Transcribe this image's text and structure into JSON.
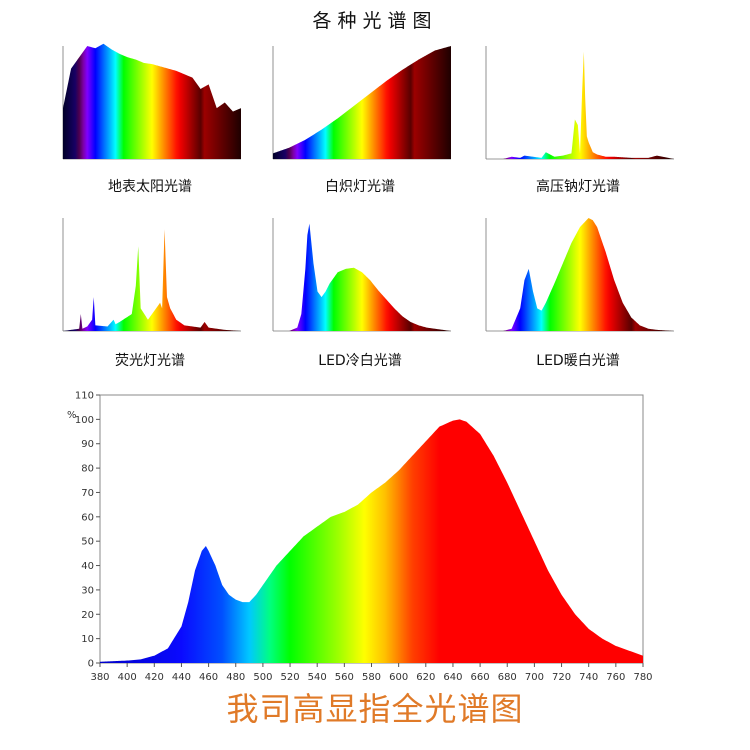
{
  "page": {
    "title": "各种光谱图",
    "footer": "我司高显指全光谱图"
  },
  "chart_data": [
    {
      "type": "area",
      "caption": "地表太阳光谱",
      "x": [
        360,
        380,
        400,
        420,
        440,
        460,
        480,
        500,
        520,
        540,
        560,
        580,
        600,
        620,
        640,
        660,
        680,
        700,
        720,
        740,
        760,
        780,
        800
      ],
      "y": [
        0.45,
        0.8,
        0.9,
        1.0,
        0.98,
        1.02,
        0.97,
        0.93,
        0.9,
        0.88,
        0.85,
        0.84,
        0.82,
        0.8,
        0.78,
        0.75,
        0.72,
        0.62,
        0.66,
        0.45,
        0.5,
        0.42,
        0.45
      ],
      "ylim": [
        0,
        1
      ]
    },
    {
      "type": "area",
      "caption": "白炽灯光谱",
      "x": [
        360,
        400,
        440,
        480,
        520,
        560,
        600,
        640,
        680,
        720,
        760,
        800
      ],
      "y": [
        0.05,
        0.1,
        0.17,
        0.26,
        0.36,
        0.47,
        0.58,
        0.69,
        0.79,
        0.88,
        0.96,
        1.0
      ],
      "ylim": [
        0,
        1
      ]
    },
    {
      "type": "area",
      "caption": "高压钠灯光谱",
      "x": [
        360,
        400,
        420,
        440,
        450,
        470,
        490,
        500,
        520,
        540,
        560,
        568,
        575,
        580,
        585,
        589,
        592,
        596,
        600,
        610,
        620,
        640,
        660,
        700,
        740,
        760,
        800
      ],
      "y": [
        0,
        0,
        0.02,
        0.01,
        0.03,
        0.02,
        0.01,
        0.06,
        0.02,
        0.03,
        0.05,
        0.35,
        0.3,
        0.05,
        0.6,
        0.95,
        0.55,
        0.2,
        0.15,
        0.06,
        0.04,
        0.02,
        0.02,
        0.01,
        0.01,
        0.03,
        0
      ],
      "ylim": [
        0,
        1
      ]
    },
    {
      "type": "area",
      "caption": "荧光灯光谱",
      "x": [
        360,
        400,
        404,
        408,
        420,
        432,
        436,
        440,
        470,
        485,
        490,
        500,
        530,
        540,
        546,
        552,
        570,
        580,
        590,
        600,
        605,
        611,
        617,
        625,
        640,
        660,
        700,
        710,
        720,
        760,
        800
      ],
      "y": [
        0,
        0.02,
        0.15,
        0.02,
        0.04,
        0.1,
        0.3,
        0.05,
        0.04,
        0.1,
        0.06,
        0.08,
        0.15,
        0.4,
        0.75,
        0.2,
        0.1,
        0.15,
        0.2,
        0.25,
        0.2,
        0.9,
        0.3,
        0.2,
        0.1,
        0.05,
        0.03,
        0.08,
        0.03,
        0.01,
        0
      ],
      "ylim": [
        0,
        1
      ]
    },
    {
      "type": "area",
      "caption": "LED冷白光谱",
      "x": [
        360,
        400,
        420,
        430,
        440,
        445,
        450,
        460,
        470,
        480,
        490,
        500,
        520,
        540,
        560,
        580,
        600,
        620,
        640,
        660,
        680,
        700,
        720,
        740,
        760,
        800
      ],
      "y": [
        0,
        0,
        0.03,
        0.15,
        0.55,
        0.85,
        0.95,
        0.6,
        0.35,
        0.3,
        0.35,
        0.42,
        0.52,
        0.55,
        0.56,
        0.52,
        0.45,
        0.36,
        0.28,
        0.2,
        0.13,
        0.08,
        0.05,
        0.03,
        0.02,
        0
      ],
      "ylim": [
        0,
        1
      ]
    },
    {
      "type": "area",
      "caption": "LED暖白光谱",
      "x": [
        360,
        400,
        420,
        440,
        450,
        460,
        470,
        480,
        490,
        500,
        520,
        540,
        560,
        580,
        600,
        610,
        620,
        640,
        660,
        680,
        700,
        720,
        740,
        760,
        800
      ],
      "y": [
        0,
        0,
        0.02,
        0.2,
        0.45,
        0.55,
        0.35,
        0.2,
        0.18,
        0.25,
        0.42,
        0.6,
        0.78,
        0.92,
        1.0,
        0.98,
        0.92,
        0.7,
        0.45,
        0.25,
        0.12,
        0.05,
        0.02,
        0.01,
        0
      ],
      "ylim": [
        0,
        1
      ]
    },
    {
      "type": "area",
      "title": "",
      "ylabel": "%",
      "xlim": [
        380,
        780
      ],
      "ylim": [
        0,
        110
      ],
      "x_ticks": [
        380,
        400,
        420,
        440,
        460,
        480,
        500,
        520,
        540,
        560,
        580,
        600,
        620,
        640,
        660,
        680,
        700,
        720,
        740,
        760,
        780
      ],
      "y_ticks": [
        0,
        10,
        20,
        30,
        40,
        50,
        60,
        70,
        80,
        90,
        100,
        110
      ],
      "x": [
        380,
        400,
        410,
        420,
        430,
        440,
        445,
        450,
        455,
        458,
        460,
        465,
        470,
        475,
        480,
        485,
        490,
        495,
        500,
        510,
        520,
        530,
        540,
        550,
        560,
        570,
        580,
        590,
        600,
        610,
        620,
        630,
        640,
        645,
        650,
        660,
        670,
        680,
        690,
        700,
        710,
        720,
        730,
        740,
        750,
        760,
        770,
        780
      ],
      "y": [
        0.5,
        1,
        1.5,
        3,
        6,
        15,
        25,
        38,
        46,
        48,
        46,
        40,
        32,
        28,
        26,
        25,
        25,
        28,
        32,
        40,
        46,
        52,
        56,
        60,
        62,
        65,
        70,
        74,
        79,
        85,
        91,
        97,
        99.5,
        100,
        99,
        94,
        85,
        74,
        62,
        50,
        38,
        28,
        20,
        14,
        10,
        7,
        5,
        3
      ]
    }
  ]
}
